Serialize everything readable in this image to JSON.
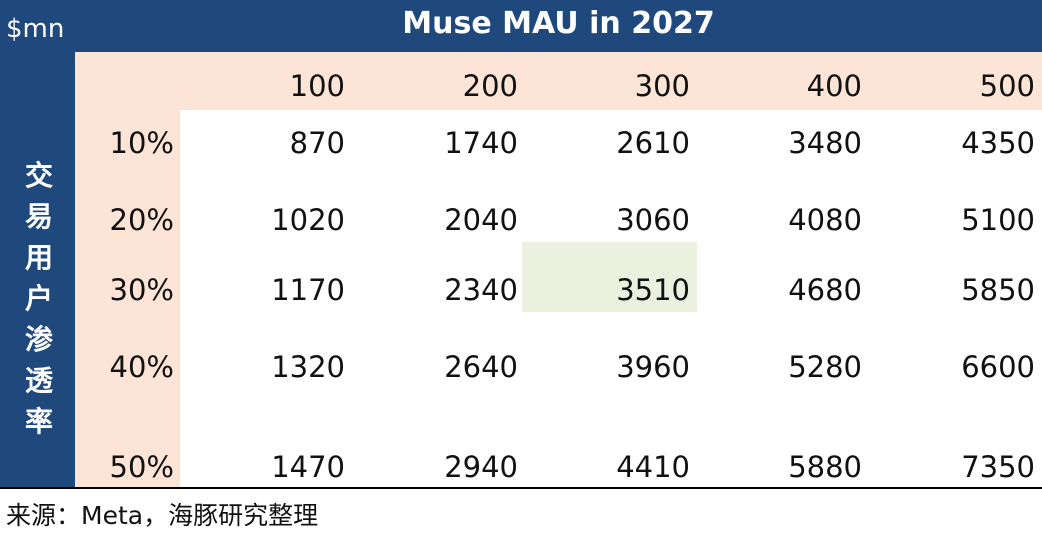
{
  "header": {
    "unit": "$mn",
    "title": "Muse MAU  in 2027",
    "row_header": "交易用户渗透率"
  },
  "table": {
    "columns": [
      "100",
      "200",
      "300",
      "400",
      "500"
    ],
    "rows": [
      {
        "label": "10%",
        "values": [
          "870",
          "1740",
          "2610",
          "3480",
          "4350"
        ]
      },
      {
        "label": "20%",
        "values": [
          "1020",
          "2040",
          "3060",
          "4080",
          "5100"
        ]
      },
      {
        "label": "30%",
        "values": [
          "1170",
          "2340",
          "3510",
          "4680",
          "5850"
        ]
      },
      {
        "label": "40%",
        "values": [
          "1320",
          "2640",
          "3960",
          "5280",
          "6600"
        ]
      },
      {
        "label": "50%",
        "values": [
          "1470",
          "2940",
          "4410",
          "5880",
          "7350"
        ]
      }
    ]
  },
  "footer": {
    "source": "来源：Meta，海豚研究整理"
  }
}
